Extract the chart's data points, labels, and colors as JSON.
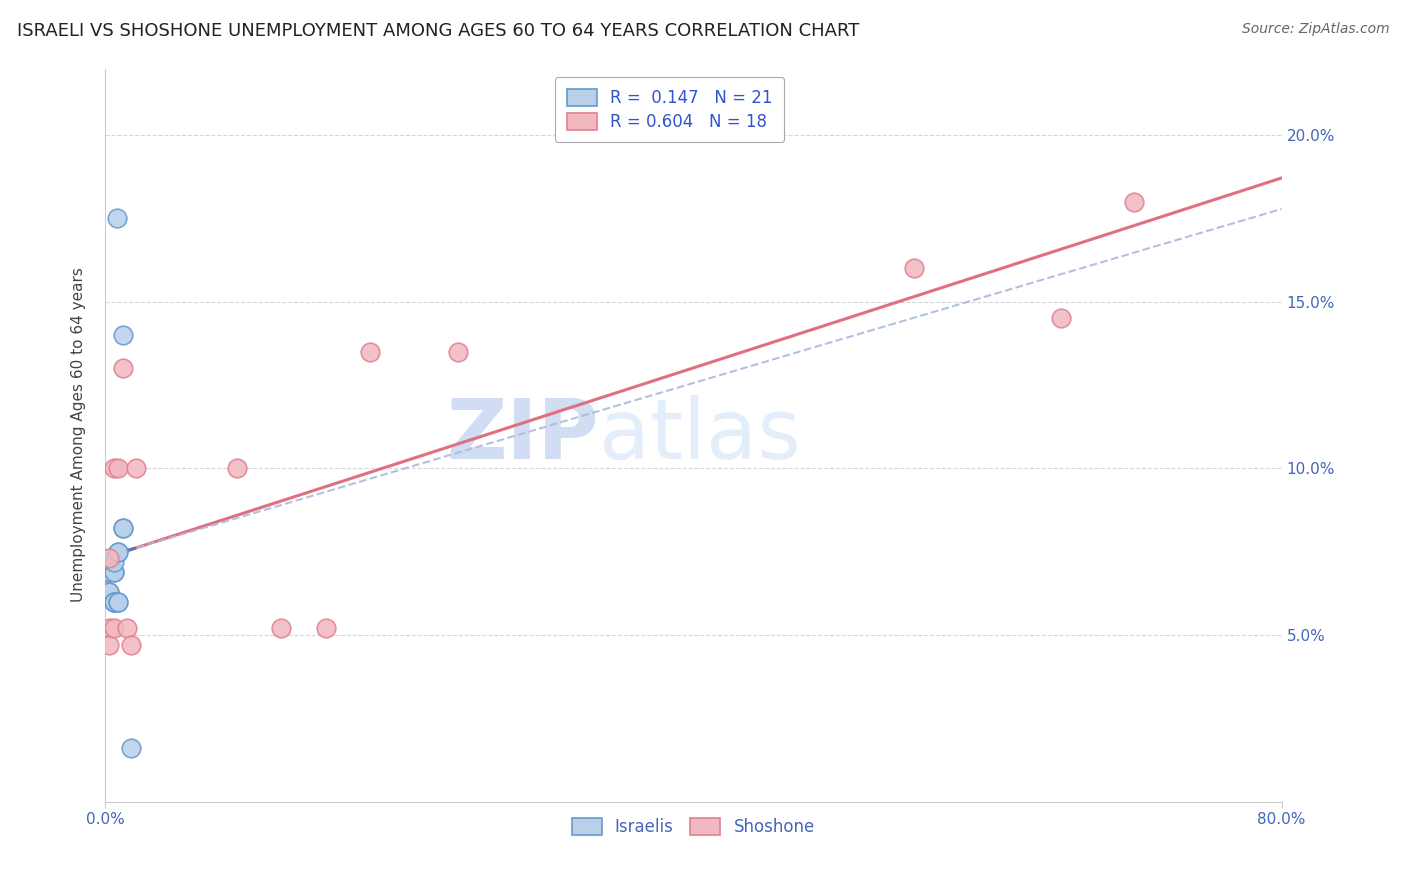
{
  "title": "ISRAELI VS SHOSHONE UNEMPLOYMENT AMONG AGES 60 TO 64 YEARS CORRELATION CHART",
  "source": "Source: ZipAtlas.com",
  "ylabel": "Unemployment Among Ages 60 to 64 years",
  "xlim": [
    0.0,
    0.8
  ],
  "ylim": [
    0.0,
    0.22
  ],
  "ytick_vals": [
    0.05,
    0.1,
    0.15,
    0.2
  ],
  "ytick_labels": [
    "5.0%",
    "10.0%",
    "15.0%",
    "20.0%"
  ],
  "israelis_x": [
    0.008,
    0.012,
    0.0,
    0.003,
    0.003,
    0.003,
    0.003,
    0.003,
    0.006,
    0.006,
    0.006,
    0.006,
    0.006,
    0.006,
    0.009,
    0.009,
    0.009,
    0.009,
    0.012,
    0.012,
    0.018
  ],
  "israelis_y": [
    0.175,
    0.14,
    0.069,
    0.069,
    0.069,
    0.072,
    0.063,
    0.063,
    0.069,
    0.069,
    0.072,
    0.06,
    0.06,
    0.06,
    0.075,
    0.075,
    0.06,
    0.06,
    0.082,
    0.082,
    0.016
  ],
  "shoshone_x": [
    0.003,
    0.003,
    0.003,
    0.006,
    0.006,
    0.009,
    0.012,
    0.015,
    0.018,
    0.021,
    0.09,
    0.12,
    0.15,
    0.18,
    0.24,
    0.55,
    0.65,
    0.7
  ],
  "shoshone_y": [
    0.073,
    0.052,
    0.047,
    0.1,
    0.052,
    0.1,
    0.13,
    0.052,
    0.047,
    0.1,
    0.1,
    0.052,
    0.052,
    0.135,
    0.135,
    0.16,
    0.145,
    0.18
  ],
  "israeli_color": "#b8d0ea",
  "shoshone_color": "#f2b8c0",
  "israeli_edge": "#6699cc",
  "shoshone_edge": "#e08090",
  "israeli_R": 0.147,
  "israeli_N": 21,
  "shoshone_R": 0.604,
  "shoshone_N": 18,
  "trend_israeli_solid_color": "#5577bb",
  "trend_israeli_dashed_color": "#aabbdd",
  "trend_shoshone_color": "#e07080",
  "watermark_zip": "ZIP",
  "watermark_atlas": "atlas",
  "grid_color": "#cccccc",
  "background_color": "#ffffff",
  "title_fontsize": 13,
  "axis_label_fontsize": 11,
  "tick_fontsize": 11,
  "legend_fontsize": 12
}
